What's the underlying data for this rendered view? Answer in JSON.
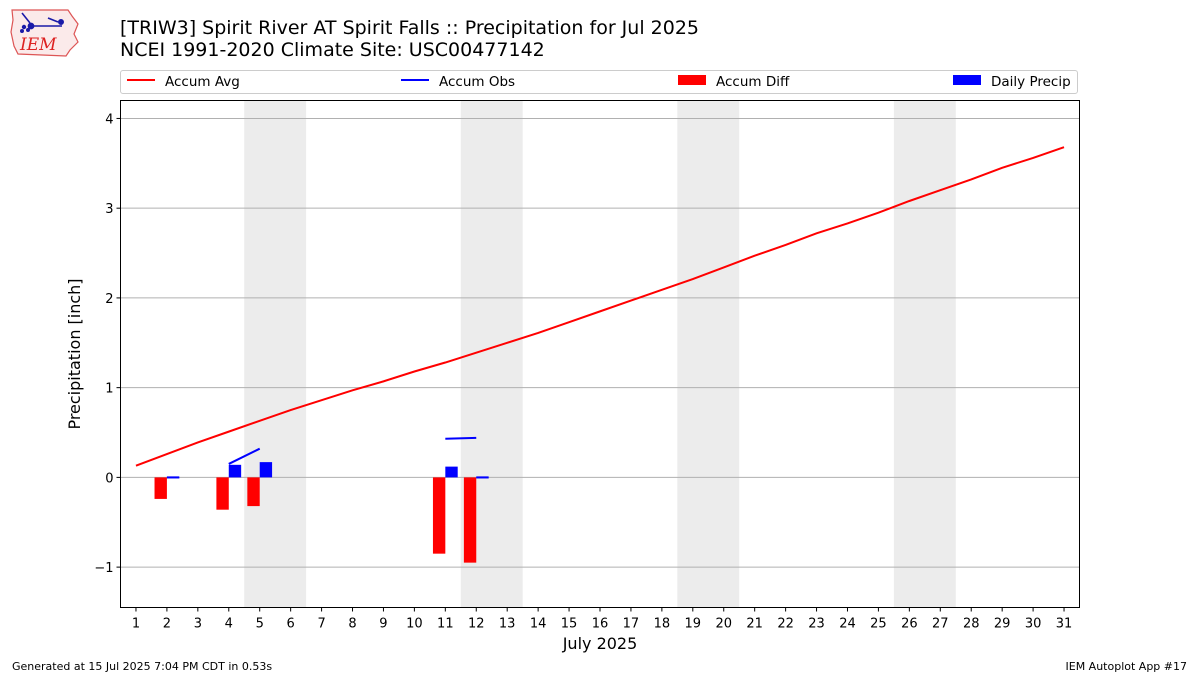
{
  "header": {
    "logo_text": "IEM",
    "title_line1": "[TRIW3] Spirit River  AT Spirit Falls :: Precipitation for Jul 2025",
    "title_line2": "NCEI 1991-2020 Climate Site: USC00477142"
  },
  "legend": {
    "items": [
      {
        "label": "Accum Avg",
        "kind": "line",
        "color": "#ff0000"
      },
      {
        "label": "Accum Obs",
        "kind": "line",
        "color": "#0000ff"
      },
      {
        "label": "Accum Diff",
        "kind": "box",
        "color": "#ff0000"
      },
      {
        "label": "Daily Precip",
        "kind": "box",
        "color": "#0000ff"
      }
    ]
  },
  "footer": {
    "generated": "Generated at 15 Jul 2025 7:04 PM CDT in 0.53s",
    "app": "IEM Autoplot App #17"
  },
  "chart_data": {
    "type": "line",
    "xlabel": "July 2025",
    "ylabel": "Precipitation [inch]",
    "xlim": [
      0.5,
      31.5
    ],
    "ylim": [
      -1.45,
      4.2
    ],
    "yticks": [
      -1,
      0,
      1,
      2,
      3,
      4
    ],
    "ytick_labels": [
      "−1",
      "0",
      "1",
      "2",
      "3",
      "4"
    ],
    "x_ticks": [
      1,
      2,
      3,
      4,
      5,
      6,
      7,
      8,
      9,
      10,
      11,
      12,
      13,
      14,
      15,
      16,
      17,
      18,
      19,
      20,
      21,
      22,
      23,
      24,
      25,
      26,
      27,
      28,
      29,
      30,
      31
    ],
    "grid": "horizontal",
    "weekend_shading": [
      [
        4.5,
        6.5
      ],
      [
        11.5,
        13.5
      ],
      [
        18.5,
        20.5
      ],
      [
        25.5,
        27.5
      ]
    ],
    "accum_avg": {
      "name": "Accum Avg",
      "color": "#ff0000",
      "days": [
        1,
        2,
        3,
        4,
        5,
        6,
        7,
        8,
        9,
        10,
        11,
        12,
        13,
        14,
        15,
        16,
        17,
        18,
        19,
        20,
        21,
        22,
        23,
        24,
        25,
        26,
        27,
        28,
        29,
        30,
        31
      ],
      "values": [
        0.13,
        0.26,
        0.39,
        0.51,
        0.63,
        0.75,
        0.86,
        0.97,
        1.07,
        1.18,
        1.28,
        1.39,
        1.5,
        1.61,
        1.73,
        1.85,
        1.97,
        2.09,
        2.21,
        2.34,
        2.47,
        2.59,
        2.72,
        2.83,
        2.95,
        3.08,
        3.2,
        3.32,
        3.45,
        3.56,
        3.68
      ]
    },
    "accum_obs": {
      "name": "Accum Obs",
      "color": "#0000ff",
      "segments": [
        {
          "days": [
            2,
            2.4
          ],
          "values": [
            0.0,
            0.0
          ]
        },
        {
          "days": [
            4,
            5
          ],
          "values": [
            0.15,
            0.32
          ]
        },
        {
          "days": [
            11,
            12
          ],
          "values": [
            0.43,
            0.44
          ]
        },
        {
          "days": [
            12,
            12.4
          ],
          "values": [
            0.0,
            0.0
          ]
        }
      ]
    },
    "accum_diff": {
      "name": "Accum Diff",
      "color": "#ff0000",
      "days": [
        2,
        4,
        5,
        11,
        12
      ],
      "values": [
        -0.24,
        -0.36,
        -0.32,
        -0.85,
        -0.95
      ]
    },
    "daily_precip": {
      "name": "Daily Precip",
      "color": "#0000ff",
      "days": [
        2,
        4,
        5,
        11,
        12
      ],
      "values": [
        0.0,
        0.14,
        0.17,
        0.12,
        0.0
      ]
    }
  }
}
